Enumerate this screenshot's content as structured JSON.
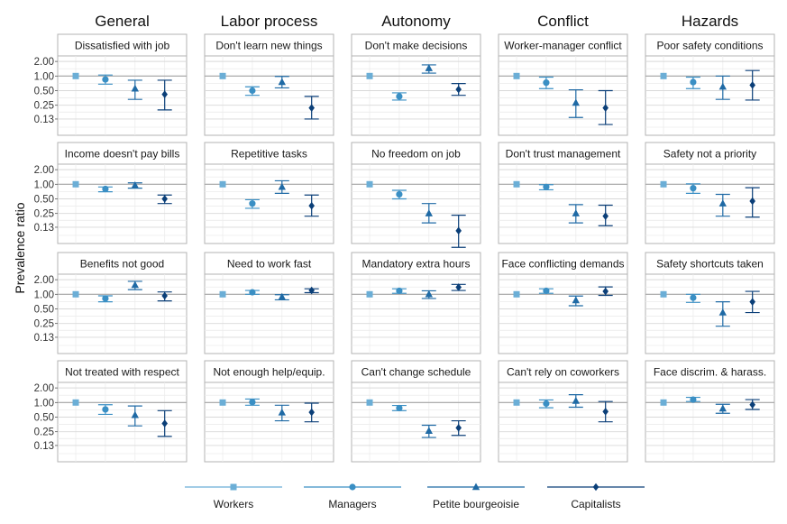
{
  "colors": {
    "workers": "#6baed6",
    "managers": "#3a8fc4",
    "petite": "#1f6aa5",
    "capitalists": "#0b3f78",
    "panel_border": "#b3b3b3",
    "grid_major": "#d9d9d9",
    "grid_minor": "#ececec",
    "reference": "#a6a6a6"
  },
  "chart_data": {
    "type": "scatter",
    "ylabel": "Prevalence ratio",
    "y_scale": "log",
    "y_ticks": [
      2.0,
      1.0,
      0.5,
      0.25,
      0.13
    ],
    "y_tick_labels": [
      "2.00",
      "1.00",
      "0.50",
      "0.25",
      "0.13"
    ],
    "ylim": [
      0.06,
      2.6
    ],
    "reference_line": 1.0,
    "columns": [
      "General",
      "Labor process",
      "Autonomy",
      "Conflict",
      "Hazards"
    ],
    "legend": {
      "placement": "bottom",
      "entries": [
        {
          "name": "Workers",
          "shape": "square",
          "color_key": "workers"
        },
        {
          "name": "Managers",
          "shape": "circle",
          "color_key": "managers"
        },
        {
          "name": "Petite bourgeoisie",
          "shape": "triangle",
          "color_key": "petite"
        },
        {
          "name": "Capitalists",
          "shape": "diamond",
          "color_key": "capitalists"
        }
      ]
    },
    "panels": [
      [
        {
          "title": "Dissatisfied with job",
          "points": [
            [
              1.0,
              null,
              null
            ],
            [
              0.85,
              0.68,
              1.05
            ],
            [
              0.55,
              0.33,
              0.82
            ],
            [
              0.42,
              0.2,
              0.82
            ]
          ]
        },
        {
          "title": "Don't learn new things",
          "points": [
            [
              1.0,
              null,
              null
            ],
            [
              0.5,
              0.4,
              0.6
            ],
            [
              0.75,
              0.57,
              0.98
            ],
            [
              0.22,
              0.13,
              0.38
            ]
          ]
        },
        {
          "title": "Don't make decisions",
          "points": [
            [
              1.0,
              null,
              null
            ],
            [
              0.38,
              0.32,
              0.45
            ],
            [
              1.45,
              1.15,
              1.7
            ],
            [
              0.53,
              0.4,
              0.7
            ]
          ]
        },
        {
          "title": "Worker-manager conflict",
          "points": [
            [
              1.0,
              null,
              null
            ],
            [
              0.73,
              0.55,
              0.95
            ],
            [
              0.28,
              0.14,
              0.52
            ],
            [
              0.22,
              0.1,
              0.5
            ]
          ]
        },
        {
          "title": "Poor safety conditions",
          "points": [
            [
              1.0,
              null,
              null
            ],
            [
              0.75,
              0.55,
              0.95
            ],
            [
              0.6,
              0.33,
              1.0
            ],
            [
              0.65,
              0.32,
              1.3
            ]
          ]
        }
      ],
      [
        {
          "title": "Income doesn't pay bills",
          "points": [
            [
              1.0,
              null,
              null
            ],
            [
              0.8,
              0.7,
              0.88
            ],
            [
              0.95,
              0.83,
              1.07
            ],
            [
              0.5,
              0.4,
              0.6
            ]
          ]
        },
        {
          "title": "Repetitive tasks",
          "points": [
            [
              1.0,
              null,
              null
            ],
            [
              0.4,
              0.32,
              0.48
            ],
            [
              0.88,
              0.65,
              1.18
            ],
            [
              0.36,
              0.22,
              0.6
            ]
          ]
        },
        {
          "title": "No freedom on job",
          "points": [
            [
              1.0,
              null,
              null
            ],
            [
              0.62,
              0.5,
              0.75
            ],
            [
              0.25,
              0.16,
              0.4
            ],
            [
              0.11,
              0.05,
              0.23
            ]
          ]
        },
        {
          "title": "Don't trust management",
          "points": [
            [
              1.0,
              null,
              null
            ],
            [
              0.88,
              0.77,
              0.98
            ],
            [
              0.25,
              0.16,
              0.38
            ],
            [
              0.22,
              0.14,
              0.37
            ]
          ]
        },
        {
          "title": "Safety not a priority",
          "points": [
            [
              1.0,
              null,
              null
            ],
            [
              0.83,
              0.65,
              1.02
            ],
            [
              0.4,
              0.22,
              0.62
            ],
            [
              0.45,
              0.21,
              0.85
            ]
          ]
        }
      ],
      [
        {
          "title": "Benefits not good",
          "points": [
            [
              1.0,
              null,
              null
            ],
            [
              0.82,
              0.7,
              0.93
            ],
            [
              1.55,
              1.25,
              1.85
            ],
            [
              0.93,
              0.73,
              1.12
            ]
          ]
        },
        {
          "title": "Need to work fast",
          "points": [
            [
              1.0,
              null,
              null
            ],
            [
              1.1,
              1.0,
              1.2
            ],
            [
              0.88,
              0.77,
              0.98
            ],
            [
              1.2,
              1.08,
              1.3
            ]
          ]
        },
        {
          "title": "Mandatory extra hours",
          "points": [
            [
              1.0,
              null,
              null
            ],
            [
              1.18,
              1.05,
              1.3
            ],
            [
              1.0,
              0.82,
              1.18
            ],
            [
              1.4,
              1.2,
              1.6
            ]
          ]
        },
        {
          "title": "Face conflicting demands",
          "points": [
            [
              1.0,
              null,
              null
            ],
            [
              1.18,
              1.05,
              1.3
            ],
            [
              0.75,
              0.58,
              0.92
            ],
            [
              1.15,
              0.95,
              1.42
            ]
          ]
        },
        {
          "title": "Safety shortcuts taken",
          "points": [
            [
              1.0,
              null,
              null
            ],
            [
              0.85,
              0.68,
              1.0
            ],
            [
              0.42,
              0.22,
              0.7
            ],
            [
              0.7,
              0.42,
              1.15
            ]
          ]
        }
      ],
      [
        {
          "title": "Not treated with respect",
          "points": [
            [
              1.0,
              null,
              null
            ],
            [
              0.72,
              0.57,
              0.9
            ],
            [
              0.55,
              0.33,
              0.85
            ],
            [
              0.37,
              0.2,
              0.68
            ]
          ]
        },
        {
          "title": "Not enough help/equip.",
          "points": [
            [
              1.0,
              null,
              null
            ],
            [
              1.02,
              0.88,
              1.18
            ],
            [
              0.62,
              0.42,
              0.88
            ],
            [
              0.63,
              0.4,
              0.97
            ]
          ]
        },
        {
          "title": "Can't change schedule",
          "points": [
            [
              1.0,
              null,
              null
            ],
            [
              0.77,
              0.68,
              0.87
            ],
            [
              0.26,
              0.19,
              0.34
            ],
            [
              0.3,
              0.21,
              0.42
            ]
          ]
        },
        {
          "title": "Can't rely on coworkers",
          "points": [
            [
              1.0,
              null,
              null
            ],
            [
              0.95,
              0.78,
              1.13
            ],
            [
              1.08,
              0.8,
              1.45
            ],
            [
              0.65,
              0.4,
              1.05
            ]
          ]
        },
        {
          "title": "Face discrim. & harass.",
          "points": [
            [
              1.0,
              null,
              null
            ],
            [
              1.15,
              1.05,
              1.28
            ],
            [
              0.75,
              0.6,
              0.92
            ],
            [
              0.9,
              0.72,
              1.15
            ]
          ]
        }
      ]
    ]
  }
}
